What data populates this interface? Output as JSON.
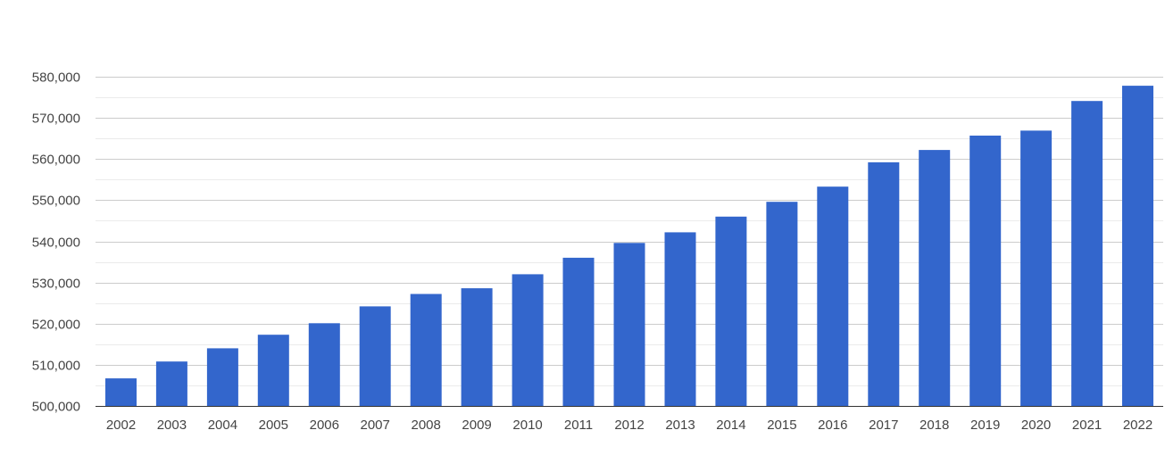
{
  "chart_data": {
    "type": "bar",
    "title": "",
    "xlabel": "",
    "ylabel": "",
    "categories": [
      "2002",
      "2003",
      "2004",
      "2005",
      "2006",
      "2007",
      "2008",
      "2009",
      "2010",
      "2011",
      "2012",
      "2013",
      "2014",
      "2015",
      "2016",
      "2017",
      "2018",
      "2019",
      "2020",
      "2021",
      "2022"
    ],
    "values": [
      506700,
      510800,
      514000,
      517300,
      520100,
      524200,
      527200,
      528600,
      532000,
      536000,
      539600,
      542200,
      546000,
      549600,
      553300,
      559200,
      562200,
      565700,
      566900,
      574100,
      577800
    ],
    "ylim": [
      500000,
      580000
    ],
    "yticks": [
      500000,
      510000,
      520000,
      530000,
      540000,
      550000,
      560000,
      570000,
      580000
    ],
    "ytick_labels": [
      "500,000",
      "510,000",
      "520,000",
      "530,000",
      "540,000",
      "550,000",
      "560,000",
      "570,000",
      "580,000"
    ],
    "grid": true,
    "minor_grid": true,
    "legend": "none",
    "colors": {
      "bar": "#3366cc",
      "gridline": "#cccccc",
      "minor_gridline": "#ebebeb",
      "axis_text": "#444444"
    }
  }
}
